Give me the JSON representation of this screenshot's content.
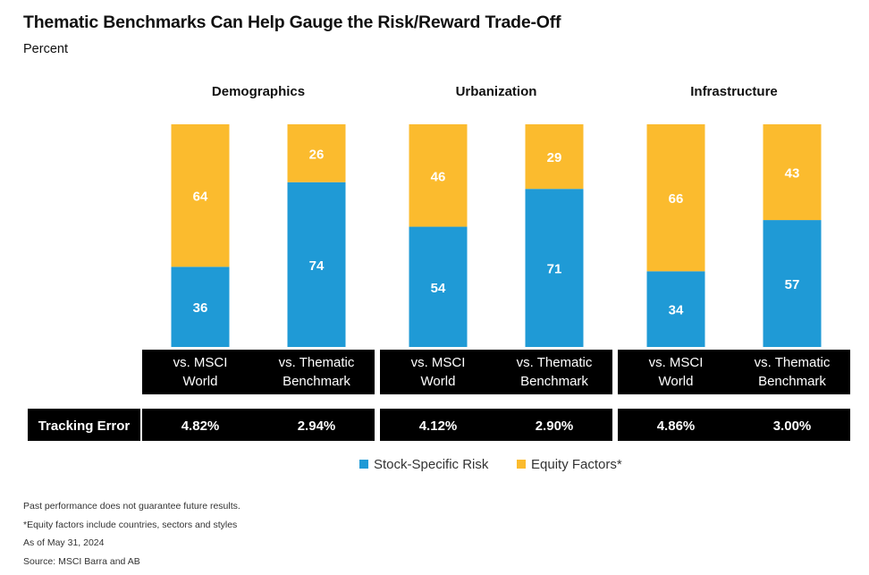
{
  "title": "Thematic Benchmarks Can Help Gauge the Risk/Reward Trade-Off",
  "subtitle": "Percent",
  "chart_data": {
    "type": "bar",
    "stacked": true,
    "ylim": [
      0,
      100
    ],
    "groups": [
      "Demographics",
      "Urbanization",
      "Infrastructure"
    ],
    "categories": [
      "vs. MSCI World",
      "vs. Thematic Benchmark",
      "vs. MSCI World",
      "vs. Thematic Benchmark",
      "vs. MSCI World",
      "vs. Thematic Benchmark"
    ],
    "category_lines": [
      [
        "vs. MSCI",
        "World"
      ],
      [
        "vs. Thematic",
        "Benchmark"
      ],
      [
        "vs. MSCI",
        "World"
      ],
      [
        "vs. Thematic",
        "Benchmark"
      ],
      [
        "vs. MSCI",
        "World"
      ],
      [
        "vs. Thematic",
        "Benchmark"
      ]
    ],
    "series": [
      {
        "name": "Stock-Specific Risk",
        "color": "#1f9ad6",
        "values": [
          36,
          74,
          54,
          71,
          34,
          57
        ]
      },
      {
        "name": "Equity Factors*",
        "color": "#fbbb2e",
        "values": [
          64,
          26,
          46,
          29,
          66,
          43
        ]
      }
    ],
    "tracking_error": {
      "label": "Tracking Error",
      "values": [
        "4.82%",
        "2.94%",
        "4.12%",
        "2.90%",
        "4.86%",
        "3.00%"
      ]
    },
    "legend_position": "bottom-center"
  },
  "notes": [
    "Past performance does not guarantee future results.",
    "*Equity factors include countries, sectors and styles",
    "As of May 31, 2024",
    "Source: MSCI Barra and AB"
  ]
}
